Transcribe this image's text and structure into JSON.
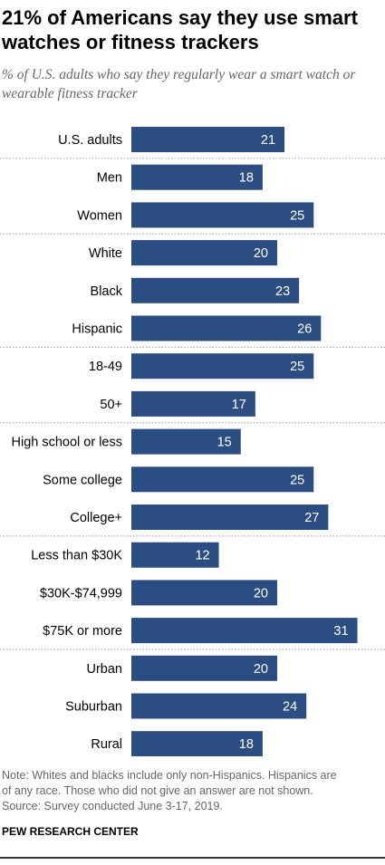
{
  "header": {
    "title": "21% of Americans say they use smart watches or fitness trackers",
    "subtitle": "% of U.S. adults who say they regularly wear a smart watch or wearable fitness tracker"
  },
  "chart_data": {
    "type": "bar",
    "orientation": "horizontal",
    "categories": [
      "U.S. adults",
      "Men",
      "Women",
      "White",
      "Black",
      "Hispanic",
      "18-49",
      "50+",
      "High school or less",
      "Some college",
      "College+",
      "Less than $30K",
      "$30K-$74,999",
      "$75K or more",
      "Urban",
      "Suburban",
      "Rural"
    ],
    "values": [
      21,
      18,
      25,
      20,
      23,
      26,
      25,
      17,
      15,
      25,
      27,
      12,
      20,
      31,
      20,
      24,
      18
    ],
    "groups": [
      [
        0
      ],
      [
        1,
        2
      ],
      [
        3,
        4,
        5
      ],
      [
        6,
        7
      ],
      [
        8,
        9,
        10
      ],
      [
        11,
        12,
        13
      ],
      [
        14,
        15,
        16
      ]
    ],
    "bar_color": "#2c4d82",
    "label_color": "#ffffff",
    "separator_color": "#9a9a9a",
    "xlim": [
      0,
      31
    ],
    "grid": false,
    "legend": "none"
  },
  "footer": {
    "note_lines": [
      "Note: Whites and blacks include only non-Hispanics. Hispanics are",
      "of any race. Those who did not give an answer are not shown.",
      "Source: Survey conducted June 3-17, 2019."
    ],
    "source_org": "PEW RESEARCH CENTER"
  }
}
